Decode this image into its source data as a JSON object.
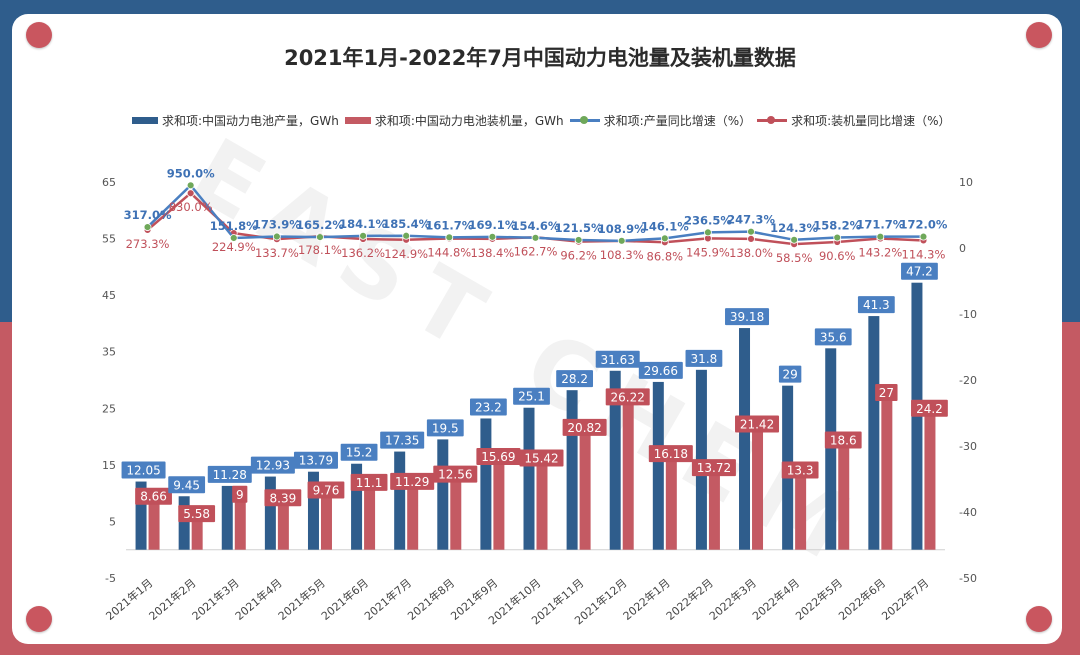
{
  "chart_data": {
    "type": "bar",
    "title": "2021年1月-2022年7月中国动力电池量及装机量数据",
    "watermark": "EAST CHEM",
    "categories": [
      "2021年1月",
      "2021年2月",
      "2021年3月",
      "2021年4月",
      "2021年5月",
      "2021年6月",
      "2021年7月",
      "2021年8月",
      "2021年9月",
      "2021年10月",
      "2021年11月",
      "2021年12月",
      "2022年1月",
      "2022年2月",
      "2022年3月",
      "2022年4月",
      "2022年5月",
      "2022年6月",
      "2022年7月"
    ],
    "left_axis": {
      "min": -5,
      "max": 65,
      "ticks": [
        "65",
        "55",
        "45",
        "35",
        "25",
        "15",
        "5",
        "-5"
      ]
    },
    "right_axis": {
      "min": -50,
      "max": 10,
      "ticks": [
        "10",
        "0",
        "-10",
        "-20",
        "-30",
        "-40",
        "-50"
      ]
    },
    "series": [
      {
        "name": "求和项:中国动力电池产量，GWh",
        "kind": "bar",
        "color": "#2f5d8c",
        "values": [
          12.05,
          9.45,
          11.28,
          12.93,
          13.79,
          15.2,
          17.35,
          19.5,
          23.2,
          25.1,
          28.2,
          31.63,
          29.66,
          31.8,
          39.18,
          29,
          35.6,
          41.3,
          47.2
        ],
        "labels": [
          "12.05",
          "9.45",
          "11.28",
          "12.93",
          "13.79",
          "15.2",
          "17.35",
          "19.5",
          "23.2",
          "25.1",
          "28.2",
          "31.63",
          "29.66",
          "31.8",
          "39.18",
          "29",
          "35.6",
          "41.3",
          "47.2"
        ]
      },
      {
        "name": "求和项:中国动力电池装机量，GWh",
        "kind": "bar",
        "color": "#c45a63",
        "values": [
          8.66,
          5.58,
          9,
          8.39,
          9.76,
          11.1,
          11.29,
          12.56,
          15.69,
          15.42,
          20.82,
          26.22,
          16.18,
          13.72,
          21.42,
          13.3,
          18.6,
          27,
          24.2
        ],
        "labels": [
          "8.66",
          "5.58",
          "9",
          "8.39",
          "9.76",
          "11.1",
          "11.29",
          "12.56",
          "15.69",
          "15.42",
          "20.82",
          "26.22",
          "16.18",
          "13.72",
          "21.42",
          "13.3",
          "18.6",
          "27",
          "24.2"
        ]
      },
      {
        "name": "求和项:产量同比增速（%）",
        "kind": "line",
        "color": "#4a7fc1",
        "marker": "#6fa85a",
        "values": [
          3.17,
          9.5,
          1.518,
          1.739,
          1.652,
          1.841,
          1.854,
          1.617,
          1.691,
          1.546,
          1.215,
          1.089,
          1.461,
          2.365,
          2.473,
          1.243,
          1.582,
          1.717,
          1.72
        ],
        "labels": [
          "317.0%",
          "950.0%",
          "151.8%",
          "173.9%",
          "165.2%",
          "184.1%",
          "185.4%",
          "161.7%",
          "169.1%",
          "154.6%",
          "121.5%",
          "108.9%",
          "146.1%",
          "236.5%",
          "247.3%",
          "124.3%",
          "158.2%",
          "171.7%",
          "172.0%"
        ]
      },
      {
        "name": "求和项:装机量同比增速（%）",
        "kind": "line",
        "color": "#c0505a",
        "marker": "#c0505a",
        "values": [
          2.733,
          8.3,
          2.249,
          1.337,
          1.781,
          1.362,
          1.249,
          1.448,
          1.384,
          1.627,
          0.962,
          1.083,
          0.868,
          1.459,
          1.38,
          0.585,
          0.906,
          1.432,
          1.143
        ],
        "labels": [
          "273.3%",
          "830.0%",
          "224.9%",
          "133.7%",
          "178.1%",
          "136.2%",
          "124.9%",
          "144.8%",
          "138.4%",
          "162.7%",
          "96.2%",
          "108.3%",
          "86.8%",
          "145.9%",
          "138.0%",
          "58.5%",
          "90.6%",
          "143.2%",
          "114.3%"
        ]
      }
    ]
  }
}
